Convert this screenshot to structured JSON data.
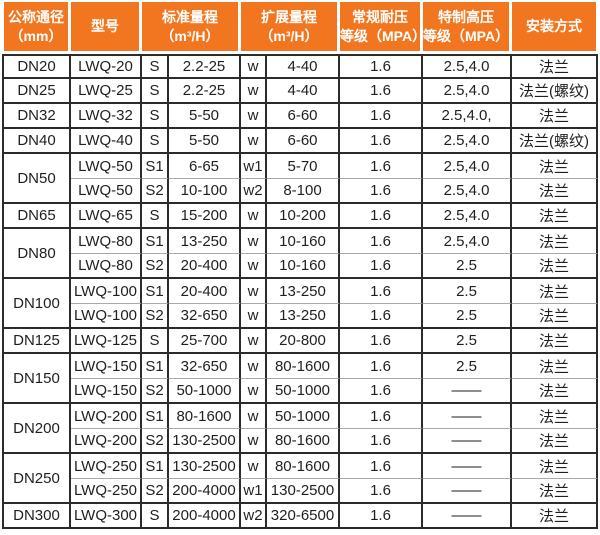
{
  "colors": {
    "header_bg": "#F27620",
    "header_text": "#FFFFFF",
    "border_dark": "#2B2B2B",
    "border_light": "#A9A9A9",
    "body_text": "#1F1F1F"
  },
  "table": {
    "headers": {
      "dn": "公称通径\n（mm）",
      "model": "型号",
      "std_range": "标准量程\n（m³/H）",
      "ext_range": "扩展量程\n（m³/H）",
      "pressure": "常规耐压\n等级（MPA）",
      "high_pressure": "特制高压\n等级（MPA）",
      "install": "安装方式"
    },
    "groups": [
      {
        "dn": "DN20",
        "rows": [
          {
            "model": "LWQ-20",
            "s": "S",
            "std": "2.2-25",
            "w": "w",
            "ext": "4-40",
            "pn": "1.6",
            "hp": "2.5,4.0",
            "install": "法兰"
          }
        ]
      },
      {
        "dn": "DN25",
        "rows": [
          {
            "model": "LWQ-25",
            "s": "S",
            "std": "2.2-25",
            "w": "w",
            "ext": "4-40",
            "pn": "1.6",
            "hp": "2.5,4.0",
            "install": "法兰(螺纹)"
          }
        ]
      },
      {
        "dn": "DN32",
        "rows": [
          {
            "model": "LWQ-32",
            "s": "S",
            "std": "5-50",
            "w": "w",
            "ext": "6-60",
            "pn": "1.6",
            "hp": "2.5,4.0,",
            "install": "法兰"
          }
        ]
      },
      {
        "dn": "DN40",
        "rows": [
          {
            "model": "LWQ-40",
            "s": "S",
            "std": "5-50",
            "w": "w",
            "ext": "6-60",
            "pn": "1.6",
            "hp": "2.5,4.0",
            "install": "法兰(螺纹)"
          }
        ]
      },
      {
        "dn": "DN50",
        "rows": [
          {
            "model": "LWQ-50",
            "s": "S1",
            "std": "6-65",
            "w": "w1",
            "ext": "5-70",
            "pn": "1.6",
            "hp": "2.5,4.0",
            "install": "法兰"
          },
          {
            "model": "LWQ-50",
            "s": "S2",
            "std": "10-100",
            "w": "w2",
            "ext": "8-100",
            "pn": "1.6",
            "hp": "2.5,4.0",
            "install": "法兰"
          }
        ]
      },
      {
        "dn": "DN65",
        "rows": [
          {
            "model": "LWQ-65",
            "s": "S",
            "std": "15-200",
            "w": "w",
            "ext": "10-200",
            "pn": "1.6",
            "hp": "2.5,4.0",
            "install": "法兰"
          }
        ]
      },
      {
        "dn": "DN80",
        "rows": [
          {
            "model": "LWQ-80",
            "s": "S1",
            "std": "13-250",
            "w": "w",
            "ext": "10-160",
            "pn": "1.6",
            "hp": "2.5,4.0",
            "install": "法兰"
          },
          {
            "model": "LWQ-80",
            "s": "S2",
            "std": "20-400",
            "w": "w",
            "ext": "10-160",
            "pn": "1.6",
            "hp": "2.5",
            "install": "法兰"
          }
        ]
      },
      {
        "dn": "DN100",
        "rows": [
          {
            "model": "LWQ-100",
            "s": "S1",
            "std": "20-400",
            "w": "w",
            "ext": "13-250",
            "pn": "1.6",
            "hp": "2.5",
            "install": "法兰"
          },
          {
            "model": "LWQ-100",
            "s": "S2",
            "std": "32-650",
            "w": "w",
            "ext": "13-250",
            "pn": "1.6",
            "hp": "2.5",
            "install": "法兰"
          }
        ]
      },
      {
        "dn": "DN125",
        "rows": [
          {
            "model": "LWQ-125",
            "s": "S",
            "std": "25-700",
            "w": "w",
            "ext": "20-800",
            "pn": "1.6",
            "hp": "2.5",
            "install": "法兰"
          }
        ]
      },
      {
        "dn": "DN150",
        "rows": [
          {
            "model": "LWQ-150",
            "s": "S1",
            "std": "32-650",
            "w": "w",
            "ext": "80-1600",
            "pn": "1.6",
            "hp": "2.5",
            "install": "法兰"
          },
          {
            "model": "LWQ-150",
            "s": "S2",
            "std": "50-1000",
            "w": "w",
            "ext": "50-1000",
            "pn": "1.6",
            "hp": "——",
            "install": "法兰"
          }
        ]
      },
      {
        "dn": "DN200",
        "rows": [
          {
            "model": "LWQ-200",
            "s": "S1",
            "std": "80-1600",
            "w": "w",
            "ext": "50-1000",
            "pn": "1.6",
            "hp": "——",
            "install": "法兰"
          },
          {
            "model": "LWQ-200",
            "s": "S2",
            "std": "130-2500",
            "w": "w",
            "ext": "80-1600",
            "pn": "1.6",
            "hp": "——",
            "install": "法兰"
          }
        ]
      },
      {
        "dn": "DN250",
        "rows": [
          {
            "model": "LWQ-250",
            "s": "S1",
            "std": "130-2500",
            "w": "w",
            "ext": "80-1600",
            "pn": "1.6",
            "hp": "——",
            "install": "法兰"
          },
          {
            "model": "LWQ-250",
            "s": "S2",
            "std": "200-4000",
            "w": "w1",
            "ext": "130-2500",
            "pn": "1.6",
            "hp": "——",
            "install": "法兰"
          }
        ]
      },
      {
        "dn": "DN300",
        "rows": [
          {
            "model": "LWQ-300",
            "s": "S",
            "std": "200-4000",
            "w": "w2",
            "ext": "320-6500",
            "pn": "1.6",
            "hp": "——",
            "install": "法兰"
          }
        ]
      }
    ]
  }
}
